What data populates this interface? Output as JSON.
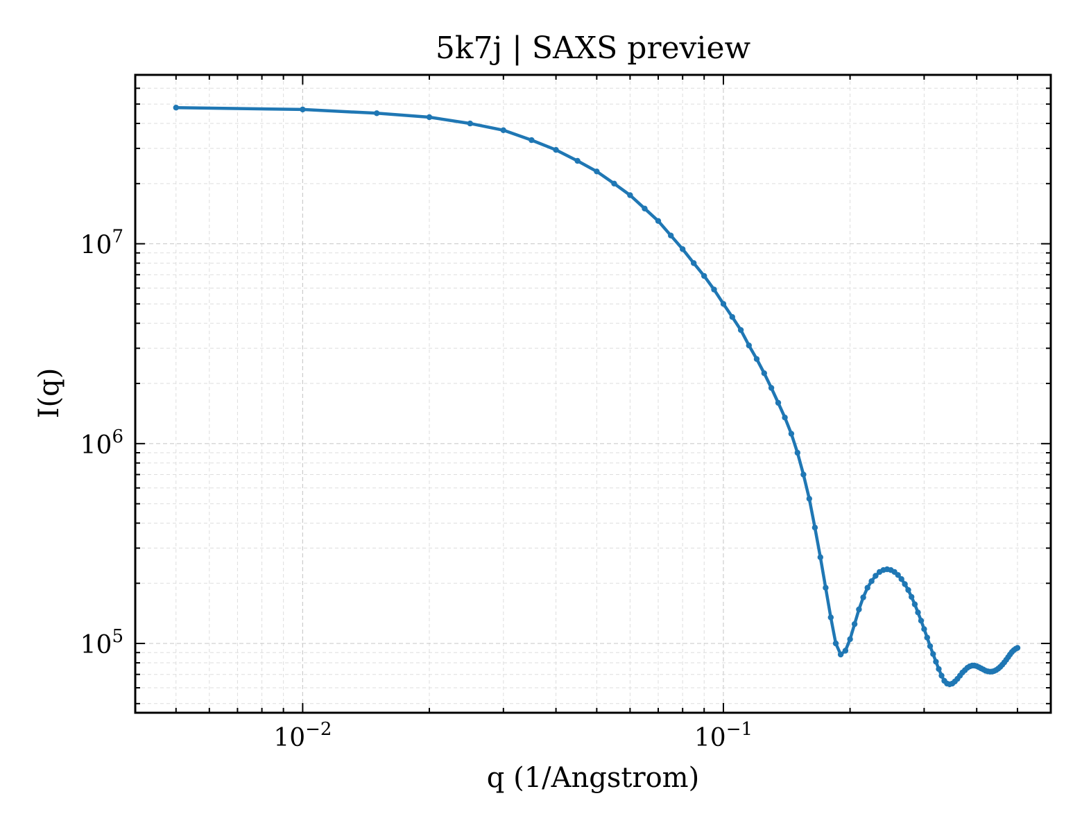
{
  "chart_data": {
    "type": "line",
    "title": "5k7j | SAXS preview",
    "xlabel": "q (1/Angstrom)",
    "ylabel": "I(q)",
    "xscale": "log",
    "yscale": "log",
    "xlim": [
      0.004,
      0.6
    ],
    "ylim": [
      45000,
      70000000
    ],
    "grid": true,
    "legend": "none",
    "x_ticks": [
      {
        "value": 0.01,
        "base": "10",
        "exp": "−2"
      },
      {
        "value": 0.1,
        "base": "10",
        "exp": "−1"
      }
    ],
    "y_ticks": [
      {
        "value": 100000,
        "base": "10",
        "exp": "5"
      },
      {
        "value": 1000000,
        "base": "10",
        "exp": "6"
      },
      {
        "value": 10000000,
        "base": "10",
        "exp": "7"
      }
    ],
    "color": "#1f77b4",
    "series": [
      {
        "x": [
          0.005,
          0.01,
          0.015,
          0.02,
          0.025,
          0.03,
          0.035,
          0.04,
          0.045,
          0.05,
          0.055,
          0.06,
          0.065,
          0.07,
          0.075,
          0.08,
          0.085,
          0.09,
          0.095,
          0.1,
          0.105,
          0.11,
          0.115,
          0.12,
          0.125,
          0.13,
          0.135,
          0.14,
          0.145,
          0.15,
          0.155,
          0.16,
          0.165,
          0.17,
          0.175,
          0.18,
          0.185,
          0.19,
          0.195,
          0.2,
          0.205,
          0.21,
          0.215,
          0.22,
          0.225,
          0.23,
          0.235,
          0.24,
          0.245,
          0.25,
          0.255,
          0.26,
          0.265,
          0.27,
          0.275,
          0.28,
          0.285,
          0.29,
          0.295,
          0.3,
          0.305,
          0.31,
          0.315,
          0.32,
          0.325,
          0.33,
          0.335,
          0.34,
          0.345,
          0.35,
          0.355,
          0.36,
          0.365,
          0.37,
          0.375,
          0.38,
          0.385,
          0.39,
          0.395,
          0.4,
          0.405,
          0.41,
          0.415,
          0.42,
          0.425,
          0.43,
          0.435,
          0.44,
          0.445,
          0.45,
          0.455,
          0.46,
          0.465,
          0.47,
          0.475,
          0.48,
          0.485,
          0.49,
          0.495,
          0.5
        ],
        "y": [
          48000000,
          47000000,
          45000000,
          43000000,
          40000000,
          37000000,
          33000000,
          29500000,
          26000000,
          23000000,
          20000000,
          17500000,
          15000000,
          13000000,
          11000000,
          9400000,
          8000000,
          6900000,
          5900000,
          5000000,
          4300000,
          3700000,
          3100000,
          2650000,
          2250000,
          1900000,
          1600000,
          1350000,
          1120000,
          900000,
          700000,
          530000,
          380000,
          270000,
          190000,
          135000,
          100000,
          88000,
          92000,
          105000,
          125000,
          148000,
          170000,
          190000,
          205000,
          218000,
          228000,
          233000,
          235000,
          233000,
          228000,
          220000,
          210000,
          198000,
          185000,
          171000,
          157000,
          143000,
          130000,
          118000,
          107000,
          97000,
          88500,
          81000,
          74500,
          69000,
          65000,
          63000,
          62500,
          63000,
          64500,
          66500,
          69000,
          71500,
          73500,
          75500,
          76800,
          77500,
          77500,
          77000,
          76000,
          75000,
          74000,
          73000,
          72500,
          72200,
          72300,
          72800,
          73600,
          74800,
          76300,
          78200,
          80400,
          82800,
          85400,
          88000,
          90500,
          92500,
          94000,
          95000
        ]
      }
    ]
  }
}
